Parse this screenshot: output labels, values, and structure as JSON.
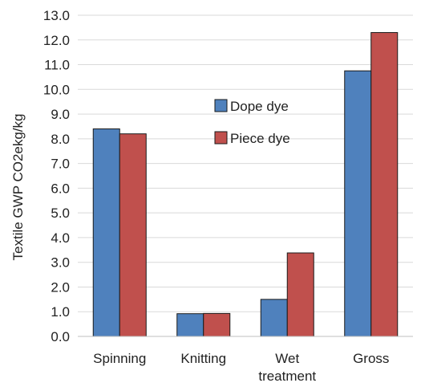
{
  "chart_data": {
    "type": "bar",
    "title": "",
    "xlabel": "",
    "ylabel": "Textile GWP CO2ekg/kg",
    "ylim": [
      0,
      13
    ],
    "yticks": [
      "0.0",
      "1.0",
      "2.0",
      "3.0",
      "4.0",
      "5.0",
      "6.0",
      "7.0",
      "8.0",
      "9.0",
      "10.0",
      "11.0",
      "12.0",
      "13.0"
    ],
    "categories": [
      [
        "Spinning"
      ],
      [
        "Knitting"
      ],
      [
        "Wet",
        "treatment"
      ],
      [
        "Gross"
      ]
    ],
    "series": [
      {
        "name": "Dope dye",
        "color": "#4f81bd",
        "values": [
          8.4,
          0.92,
          1.5,
          10.75
        ]
      },
      {
        "name": "Piece dye",
        "color": "#c0504d",
        "values": [
          8.2,
          0.93,
          3.38,
          12.3
        ]
      }
    ],
    "grid": true,
    "legend": "upper-center"
  }
}
